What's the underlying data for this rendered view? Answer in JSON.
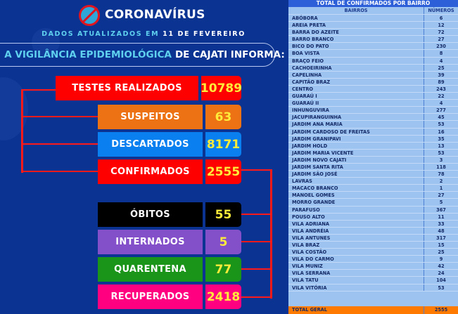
{
  "header": {
    "title": "CORONAVÍRUS",
    "logo_icon": "no-virus-icon",
    "updated_prefix": "DADOS ATUALIZADOS EM",
    "updated_date": "11 DE FEVEREIRO",
    "banner_highlight": "A VIGILÂNCIA EPIDEMIOLÓGICA",
    "banner_rest": "DE CAJATI INFORMA:"
  },
  "stats": [
    {
      "label": "TESTES REALIZADOS",
      "value": "10789",
      "color": "#ff0000"
    },
    {
      "label": "SUSPEITOS",
      "value": "63",
      "color": "#ec7213"
    },
    {
      "label": "DESCARTADOS",
      "value": "8171",
      "color": "#0a7ff0"
    },
    {
      "label": "CONFIRMADOS",
      "value": "2555",
      "color": "#ff0000"
    },
    {
      "label": "ÓBITOS",
      "value": "55",
      "color": "#000000"
    },
    {
      "label": "INTERNADOS",
      "value": "5",
      "color": "#8350c9"
    },
    {
      "label": "QUARENTENA",
      "value": "77",
      "color": "#1a9419"
    },
    {
      "label": "RECUPERADOS",
      "value": "2418",
      "color": "#ff0080"
    }
  ],
  "table": {
    "title": "TOTAL DE CONFIRMADOS POR BAIRRO",
    "col_name": "BAIRROS",
    "col_value": "NÚMEROS",
    "rows": [
      [
        "ABÓBORA",
        "6"
      ],
      [
        "AREIA PRETA",
        "12"
      ],
      [
        "BARRA DO AZEITE",
        "72"
      ],
      [
        "BARRO BRANCO",
        "27"
      ],
      [
        "BICO DO PATO",
        "230"
      ],
      [
        "BOA VISTA",
        "8"
      ],
      [
        "BRAÇO FEIO",
        "4"
      ],
      [
        "CACHOEIRINHA",
        "25"
      ],
      [
        "CAPELINHA",
        "39"
      ],
      [
        "CAPITÃO BRAZ",
        "89"
      ],
      [
        "CENTRO",
        "243"
      ],
      [
        "GUARAÚ I",
        "22"
      ],
      [
        "GUARAÚ II",
        "4"
      ],
      [
        "INHUNGUVIRA",
        "277"
      ],
      [
        "JACUPIRANGUINHA",
        "45"
      ],
      [
        "JARDIM ANA MARIA",
        "53"
      ],
      [
        "JARDIM CARDOSO DE FREITAS",
        "16"
      ],
      [
        "JARDIM GRANIPAVI",
        "35"
      ],
      [
        "JARDIM HOLD",
        "13"
      ],
      [
        "JARDIM MARIA VICENTE",
        "53"
      ],
      [
        "JARDIM NOVO CAJATI",
        "3"
      ],
      [
        "JARDIM SANTA RITA",
        "118"
      ],
      [
        "JARDIM SÃO JOSÉ",
        "78"
      ],
      [
        "LAVRAS",
        "2"
      ],
      [
        "MACACO BRANCO",
        "1"
      ],
      [
        "MANOEL GOMES",
        "27"
      ],
      [
        "MORRO GRANDE",
        "5"
      ],
      [
        "PARAFUSO",
        "367"
      ],
      [
        "POUSO ALTO",
        "11"
      ],
      [
        "VILA ADRIANA",
        "33"
      ],
      [
        "VILA ANDRÉIA",
        "48"
      ],
      [
        "VILA ANTUNES",
        "317"
      ],
      [
        "VILA BRAZ",
        "15"
      ],
      [
        "VILA COSTÃO",
        "25"
      ],
      [
        "VILA DO CARMO",
        "9"
      ],
      [
        "VILA MUNIZ",
        "42"
      ],
      [
        "VILA SERRANA",
        "24"
      ],
      [
        "VILA TATU",
        "104"
      ],
      [
        "VILA VITÓRIA",
        "53"
      ]
    ],
    "total_label": "TOTAL GERAL",
    "total_value": "2555"
  }
}
